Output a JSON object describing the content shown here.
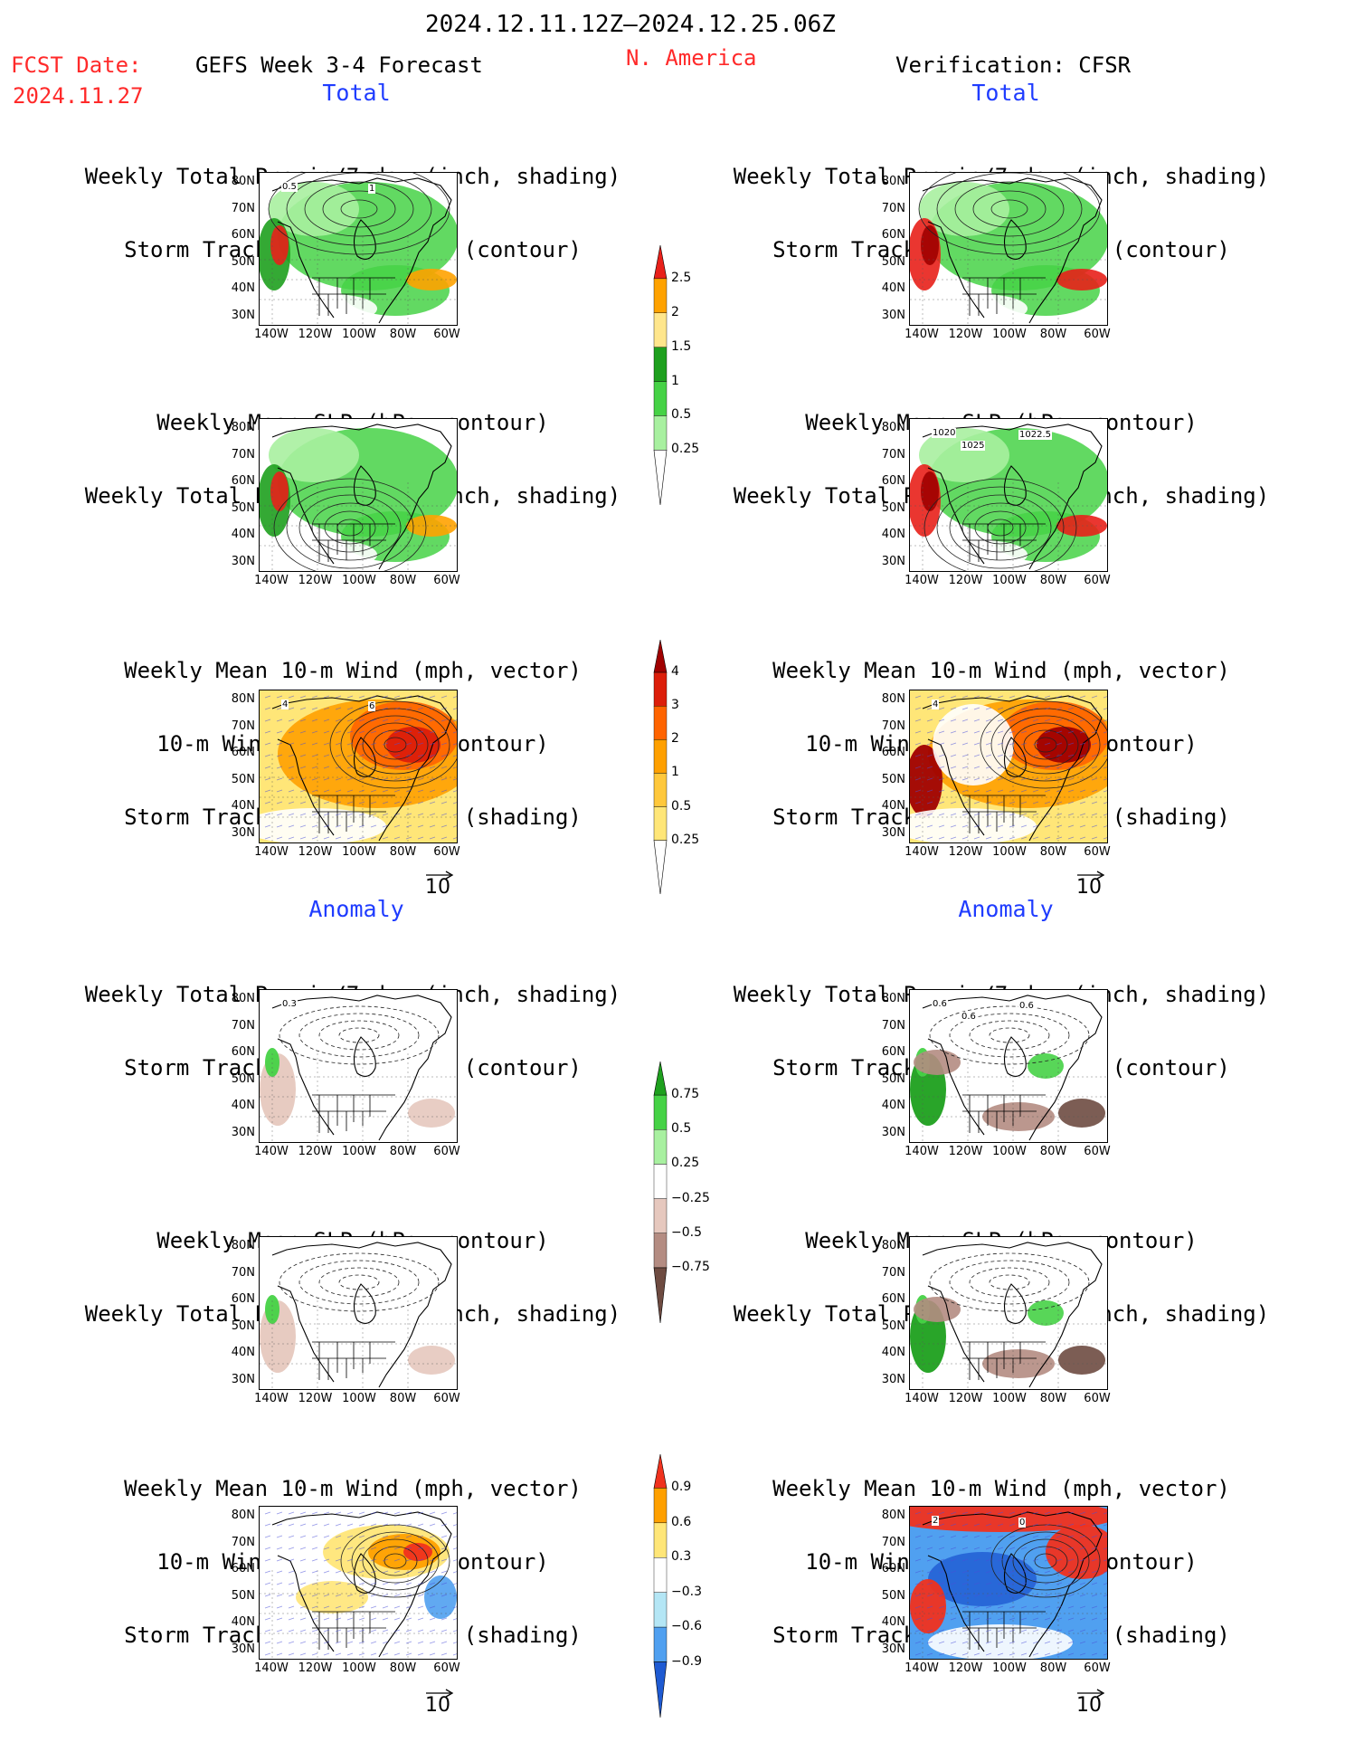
{
  "header": {
    "period": "2024.12.11.12Z–2024.12.25.06Z",
    "fcst_label": "FCST Date:",
    "fcst_date": "2024.11.27",
    "model": "GEFS Week 3-4 Forecast",
    "region": "N. America",
    "verification": "Verification: CFSR"
  },
  "sections": {
    "total": "Total",
    "anomaly": "Anomaly"
  },
  "panel_titles": {
    "precip_track": [
      "Weekly Total Precip/7-day (inch, shading)",
      "Storm Track Density/7-day (contour)"
    ],
    "slp_precip": [
      "Weekly Mean SLP (hPa, contour)",
      "Weekly Total Precip/7-day (inch, shading)"
    ],
    "wind_track": [
      "Weekly Mean 10-m Wind (mph, vector)",
      "10-m Wind Speed (mph, contour)",
      "Storm Track Density/7-day (shading)"
    ]
  },
  "axes": {
    "lat_labels": [
      "80N",
      "70N",
      "60N",
      "50N",
      "40N",
      "30N"
    ],
    "lon_labels": [
      "140W",
      "120W",
      "100W",
      "80W",
      "60W"
    ]
  },
  "vector_ref": "10",
  "map_annotations": {
    "t1_left": [
      "0.5",
      "1"
    ],
    "t2_right": [
      "1020",
      "1022.5",
      "1025"
    ],
    "t3_left": [
      "4",
      "6"
    ],
    "t3_right": [
      "4"
    ],
    "a1_left": [
      "0.3"
    ],
    "a1_right": [
      "0.6",
      "0.6",
      "0.6"
    ],
    "a3_right": [
      "2",
      "0"
    ]
  },
  "colorbars": {
    "precip_total": {
      "labels": [
        "2.5",
        "2",
        "1.5",
        "1",
        "0.5",
        "0.25"
      ],
      "colors": [
        "#e8201a",
        "#ffa200",
        "#ffe68c",
        "#1ea01e",
        "#46d246",
        "#a8f0a0",
        "#ffffff"
      ]
    },
    "track_total": {
      "labels": [
        "4",
        "3",
        "2",
        "1",
        "0.5",
        "0.25"
      ],
      "colors": [
        "#a00000",
        "#dc1e0a",
        "#ff6400",
        "#ffa000",
        "#ffc83c",
        "#ffe678",
        "#ffffff"
      ]
    },
    "precip_anom": {
      "labels": [
        "0.75",
        "0.5",
        "0.25",
        "−0.25",
        "−0.5",
        "−0.75"
      ],
      "colors": [
        "#1ea01e",
        "#46d246",
        "#a8f0a0",
        "#ffffff",
        "#e6c8be",
        "#b48c82",
        "#6e4b41"
      ]
    },
    "track_anom": {
      "labels": [
        "0.9",
        "0.6",
        "0.3",
        "−0.3",
        "−0.6",
        "−0.9"
      ],
      "colors": [
        "#f0321e",
        "#ffa000",
        "#ffe678",
        "#ffffff",
        "#b4e6f5",
        "#50a0f0",
        "#1e5ad2"
      ]
    }
  }
}
